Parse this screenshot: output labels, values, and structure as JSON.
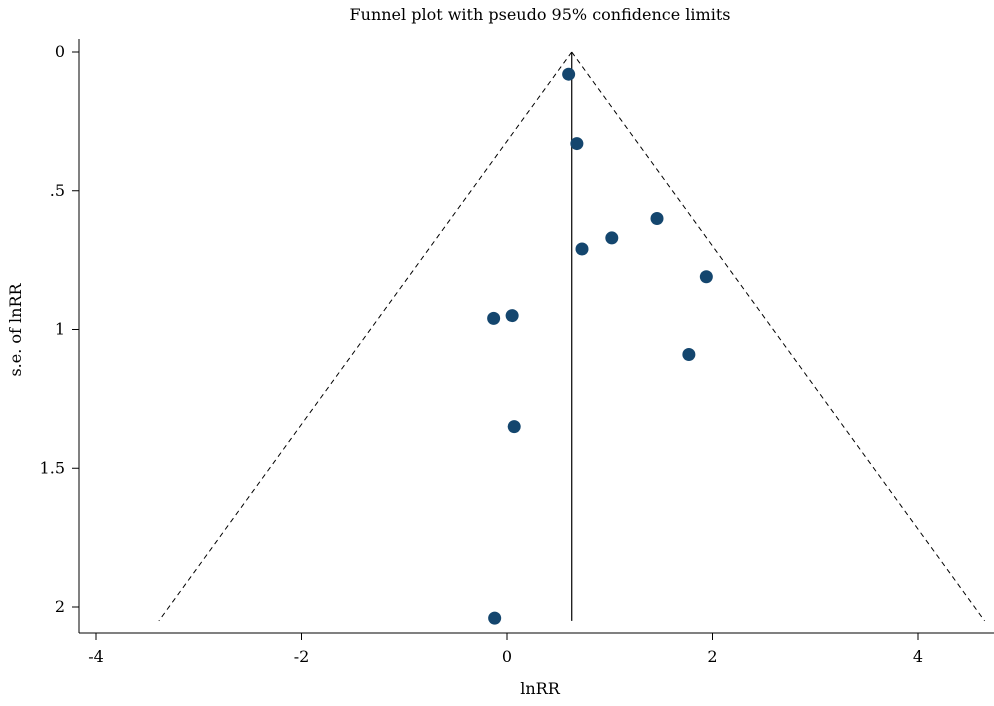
{
  "chart_data": {
    "type": "scatter",
    "title": "Funnel plot with pseudo 95% confidence limits",
    "xlabel": "lnRR",
    "ylabel": "s.e. of lnRR",
    "xlim": [
      -4.05,
      4.65
    ],
    "ylim": [
      0,
      2.09
    ],
    "y_reversed": true,
    "x_ticks": [
      {
        "value": -4,
        "label": "-4"
      },
      {
        "value": -2,
        "label": "-2"
      },
      {
        "value": 0,
        "label": "0"
      },
      {
        "value": 2,
        "label": "2"
      },
      {
        "value": 4,
        "label": "4"
      }
    ],
    "y_ticks": [
      {
        "value": 0,
        "label": "0"
      },
      {
        "value": 0.5,
        "label": ".5"
      },
      {
        "value": 1,
        "label": "1"
      },
      {
        "value": 1.5,
        "label": "1.5"
      },
      {
        "value": 2,
        "label": "2"
      }
    ],
    "pooled_estimate": 0.63,
    "funnel_se_max": 2.05,
    "points": [
      {
        "x": 0.6,
        "y": 0.08
      },
      {
        "x": 0.68,
        "y": 0.33
      },
      {
        "x": 1.46,
        "y": 0.6
      },
      {
        "x": 1.02,
        "y": 0.67
      },
      {
        "x": 0.73,
        "y": 0.71
      },
      {
        "x": 1.94,
        "y": 0.81
      },
      {
        "x": -0.13,
        "y": 0.96
      },
      {
        "x": 0.05,
        "y": 0.95
      },
      {
        "x": 1.77,
        "y": 1.09
      },
      {
        "x": 0.07,
        "y": 1.35
      },
      {
        "x": -0.12,
        "y": 2.04
      }
    ],
    "marker_color": "#14466e",
    "grid": false,
    "legend": "none"
  }
}
